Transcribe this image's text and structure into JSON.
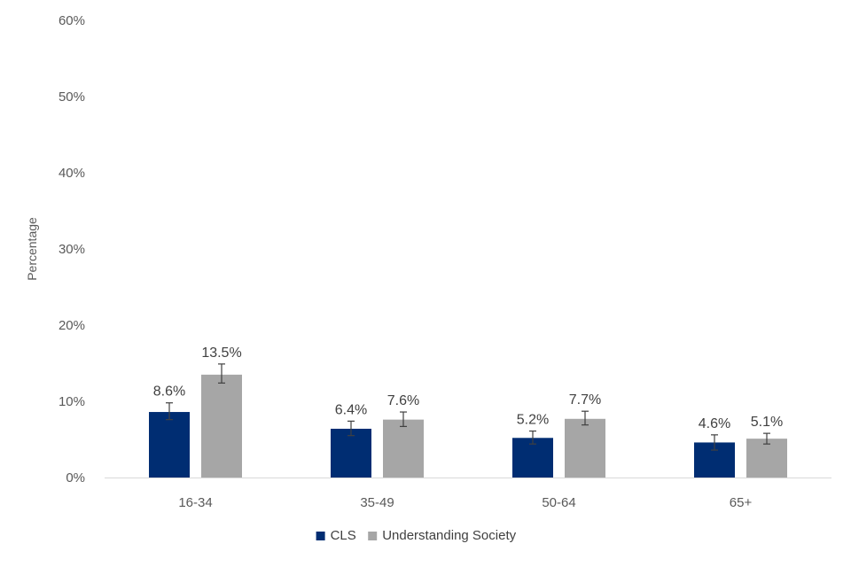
{
  "chart_data": {
    "type": "bar",
    "title": "",
    "xlabel": "",
    "ylabel": "Percentage",
    "ylim": [
      0,
      60
    ],
    "yticks": [
      {
        "value": 0,
        "label": "0%"
      },
      {
        "value": 10,
        "label": "10%"
      },
      {
        "value": 20,
        "label": "20%"
      },
      {
        "value": 30,
        "label": "30%"
      },
      {
        "value": 40,
        "label": "40%"
      },
      {
        "value": 50,
        "label": "50%"
      },
      {
        "value": 60,
        "label": "60%"
      }
    ],
    "categories": [
      "16-34",
      "35-49",
      "50-64",
      "65+"
    ],
    "series": [
      {
        "name": "CLS",
        "color": "#002d72",
        "values": [
          8.6,
          6.4,
          5.2,
          4.6
        ],
        "labels": [
          "8.6%",
          "6.4%",
          "5.2%",
          "4.6%"
        ],
        "error_low": [
          7.6,
          5.5,
          4.4,
          3.6
        ],
        "error_high": [
          9.8,
          7.4,
          6.1,
          5.6
        ]
      },
      {
        "name": "Understanding Society",
        "color": "#a6a6a6",
        "values": [
          13.5,
          7.6,
          7.7,
          5.1
        ],
        "labels": [
          "13.5%",
          "7.6%",
          "7.7%",
          "5.1%"
        ],
        "error_low": [
          12.4,
          6.7,
          6.9,
          4.4
        ],
        "error_high": [
          14.9,
          8.6,
          8.7,
          5.8
        ]
      }
    ],
    "grid": false,
    "legend": "bottom-center"
  }
}
